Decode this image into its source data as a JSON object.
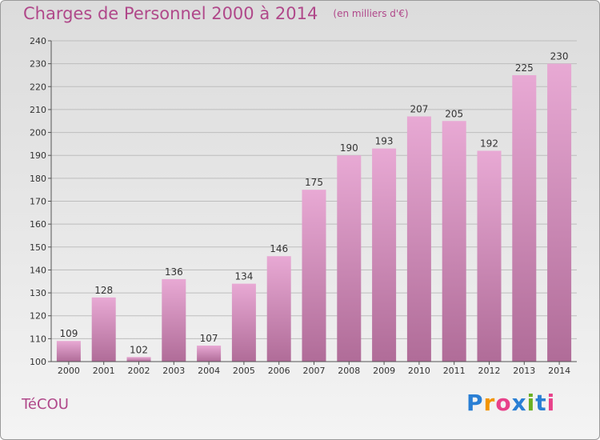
{
  "header": {
    "title": "Charges de Personnel 2000 à 2014",
    "subtitle": "(en milliers d'€)"
  },
  "footer": {
    "city": "TéCOU",
    "brand": "Proxiti"
  },
  "brand_colors": [
    "#2a7fd4",
    "#f29400",
    "#e8418a",
    "#2a7fd4",
    "#6ab023",
    "#2a7fd4",
    "#e8418a"
  ],
  "chart_data": {
    "type": "bar",
    "categories": [
      "2000",
      "2001",
      "2002",
      "2003",
      "2004",
      "2005",
      "2006",
      "2007",
      "2008",
      "2009",
      "2010",
      "2011",
      "2012",
      "2013",
      "2014"
    ],
    "values": [
      109,
      128,
      102,
      136,
      107,
      134,
      146,
      175,
      190,
      193,
      207,
      205,
      192,
      225,
      230
    ],
    "ylim": [
      100,
      240
    ],
    "yticks": [
      100,
      110,
      120,
      130,
      140,
      150,
      160,
      170,
      180,
      190,
      200,
      210,
      220,
      230,
      240
    ],
    "grid": true,
    "bar_color_top": "#e8a9d4",
    "bar_color_bottom": "#b06c98"
  }
}
